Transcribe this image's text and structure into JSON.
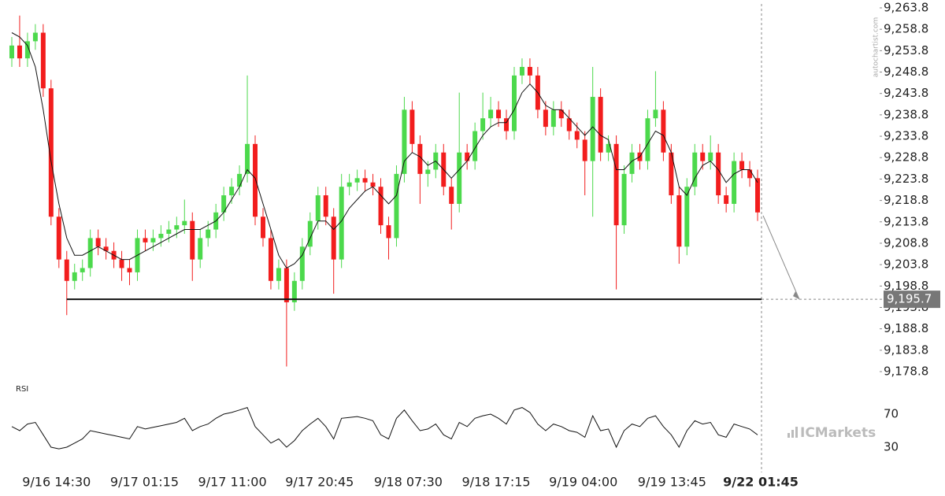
{
  "chart_data": {
    "type": "candlestick",
    "indicator_label": "RSI",
    "watermark": "autochartist.com",
    "brand": "ICMarkets",
    "up_color": "#4cd94c",
    "down_color": "#f21d1d",
    "ma_color": "#111111",
    "open": [
      9252,
      9255,
      9252,
      9256,
      9258,
      9245,
      9215,
      9205,
      9200,
      9202,
      9203,
      9210,
      9208,
      9207,
      9205,
      9203,
      9202,
      9210,
      9209,
      9210,
      9211,
      9212,
      9213,
      9214,
      9205,
      9210,
      9212,
      9216,
      9220,
      9222,
      9225,
      9232,
      9215,
      9210,
      9200,
      9203,
      9195,
      9200,
      9208,
      9214,
      9220,
      9215,
      9205,
      9222,
      9223,
      9224,
      9223,
      9222,
      9213,
      9210,
      9225,
      9240,
      9232,
      9225,
      9226,
      9230,
      9222,
      9218,
      9230,
      9228,
      9235,
      9238,
      9240,
      9238,
      9235,
      9248,
      9250,
      9248,
      9240,
      9236,
      9240,
      9238,
      9235,
      9233,
      9228,
      9243,
      9230,
      9232,
      9213,
      9225,
      9230,
      9228,
      9238,
      9240,
      9230,
      9220,
      9208,
      9222,
      9230,
      9228,
      9230,
      9220,
      9218,
      9228,
      9226,
      9224
    ],
    "high": [
      9257,
      9262,
      9258,
      9260,
      9260,
      9247,
      9217,
      9207,
      9204,
      9205,
      9212,
      9212,
      9210,
      9209,
      9207,
      9205,
      9212,
      9212,
      9212,
      9213,
      9214,
      9215,
      9219,
      9216,
      9212,
      9214,
      9218,
      9222,
      9224,
      9227,
      9248,
      9234,
      9217,
      9212,
      9205,
      9205,
      9202,
      9210,
      9216,
      9222,
      9222,
      9217,
      9225,
      9225,
      9226,
      9226,
      9225,
      9224,
      9215,
      9227,
      9243,
      9242,
      9234,
      9228,
      9232,
      9232,
      9224,
      9244,
      9232,
      9237,
      9244,
      9243,
      9242,
      9240,
      9250,
      9252,
      9252,
      9250,
      9242,
      9242,
      9242,
      9240,
      9237,
      9235,
      9250,
      9245,
      9234,
      9234,
      9227,
      9232,
      9232,
      9240,
      9249,
      9242,
      9232,
      9222,
      9224,
      9232,
      9232,
      9234,
      9232,
      9222,
      9230,
      9230,
      9228,
      9226
    ],
    "low": [
      9250,
      9250,
      9250,
      9254,
      9243,
      9213,
      9203,
      9192,
      9198,
      9200,
      9201,
      9206,
      9205,
      9203,
      9200,
      9199,
      9200,
      9207,
      9207,
      9208,
      9209,
      9210,
      9211,
      9200,
      9203,
      9208,
      9210,
      9214,
      9218,
      9220,
      9223,
      9213,
      9208,
      9198,
      9198,
      9180,
      9193,
      9198,
      9206,
      9212,
      9213,
      9197,
      9203,
      9220,
      9221,
      9221,
      9220,
      9211,
      9205,
      9208,
      9223,
      9230,
      9218,
      9222,
      9224,
      9220,
      9212,
      9216,
      9226,
      9226,
      9233,
      9236,
      9236,
      9233,
      9233,
      9246,
      9246,
      9238,
      9234,
      9234,
      9236,
      9233,
      9231,
      9220,
      9215,
      9228,
      9228,
      9198,
      9211,
      9223,
      9226,
      9226,
      9236,
      9228,
      9218,
      9204,
      9206,
      9220,
      9226,
      9226,
      9218,
      9216,
      9216,
      9224,
      9222,
      9214
    ],
    "close": [
      9255,
      9252,
      9256,
      9258,
      9245,
      9215,
      9205,
      9200,
      9202,
      9203,
      9210,
      9208,
      9207,
      9205,
      9203,
      9202,
      9210,
      9209,
      9210,
      9211,
      9212,
      9213,
      9214,
      9205,
      9210,
      9212,
      9216,
      9220,
      9222,
      9225,
      9232,
      9215,
      9210,
      9200,
      9203,
      9195,
      9200,
      9208,
      9214,
      9220,
      9215,
      9205,
      9222,
      9223,
      9224,
      9223,
      9222,
      9213,
      9210,
      9225,
      9240,
      9232,
      9225,
      9226,
      9230,
      9222,
      9218,
      9230,
      9228,
      9235,
      9238,
      9240,
      9238,
      9235,
      9248,
      9250,
      9248,
      9240,
      9236,
      9240,
      9238,
      9235,
      9233,
      9228,
      9243,
      9230,
      9232,
      9213,
      9225,
      9230,
      9228,
      9238,
      9240,
      9230,
      9220,
      9208,
      9222,
      9230,
      9228,
      9230,
      9220,
      9218,
      9228,
      9226,
      9224,
      9216
    ],
    "ma": [
      9258,
      9257,
      9255,
      9250,
      9240,
      9228,
      9218,
      9210,
      9206,
      9206,
      9207,
      9208,
      9207,
      9206,
      9205,
      9205,
      9206,
      9207,
      9208,
      9209,
      9210,
      9211,
      9212,
      9212,
      9212,
      9213,
      9214,
      9216,
      9219,
      9222,
      9226,
      9224,
      9218,
      9212,
      9206,
      9203,
      9204,
      9206,
      9210,
      9214,
      9214,
      9212,
      9214,
      9217,
      9219,
      9221,
      9222,
      9220,
      9218,
      9220,
      9228,
      9230,
      9229,
      9227,
      9228,
      9226,
      9224,
      9226,
      9228,
      9231,
      9234,
      9236,
      9237,
      9237,
      9240,
      9244,
      9246,
      9244,
      9241,
      9240,
      9240,
      9238,
      9236,
      9234,
      9236,
      9234,
      9233,
      9226,
      9226,
      9228,
      9229,
      9232,
      9235,
      9234,
      9230,
      9222,
      9220,
      9224,
      9227,
      9228,
      9226,
      9223,
      9225,
      9226,
      9226,
      9223
    ],
    "rsi": [
      55,
      50,
      58,
      60,
      45,
      30,
      28,
      30,
      35,
      40,
      50,
      48,
      46,
      44,
      42,
      40,
      55,
      52,
      54,
      56,
      58,
      60,
      65,
      50,
      55,
      58,
      65,
      70,
      72,
      75,
      78,
      55,
      45,
      35,
      40,
      30,
      38,
      50,
      58,
      65,
      55,
      40,
      65,
      66,
      67,
      65,
      62,
      45,
      40,
      65,
      75,
      62,
      50,
      52,
      58,
      45,
      40,
      60,
      55,
      65,
      68,
      70,
      65,
      58,
      75,
      78,
      72,
      58,
      50,
      58,
      55,
      50,
      48,
      42,
      68,
      50,
      52,
      30,
      50,
      58,
      55,
      65,
      68,
      55,
      45,
      30,
      50,
      62,
      58,
      60,
      45,
      42,
      58,
      55,
      52,
      45
    ],
    "level": {
      "value": 9195.7,
      "label": "9,195.7"
    },
    "ylim": [
      9178.8,
      9263.8
    ],
    "yticks": [
      {
        "value": 9178.8,
        "label": "9,178.8"
      },
      {
        "value": 9183.8,
        "label": "9,183.8"
      },
      {
        "value": 9188.8,
        "label": "9,188.8"
      },
      {
        "value": 9193.8,
        "label": "9,193.8"
      },
      {
        "value": 9198.8,
        "label": "9,198.8"
      },
      {
        "value": 9203.8,
        "label": "9,203.8"
      },
      {
        "value": 9208.8,
        "label": "9,208.8"
      },
      {
        "value": 9213.8,
        "label": "9,213.8"
      },
      {
        "value": 9218.8,
        "label": "9,218.8"
      },
      {
        "value": 9223.8,
        "label": "9,223.8"
      },
      {
        "value": 9228.8,
        "label": "9,228.8"
      },
      {
        "value": 9233.8,
        "label": "9,233.8"
      },
      {
        "value": 9238.8,
        "label": "9,238.8"
      },
      {
        "value": 9243.8,
        "label": "9,243.8"
      },
      {
        "value": 9248.8,
        "label": "9,248.8"
      },
      {
        "value": 9253.8,
        "label": "9,253.8"
      },
      {
        "value": 9258.8,
        "label": "9,258.8"
      },
      {
        "value": 9263.8,
        "label": "9,263.8"
      }
    ],
    "rsi_ylim": [
      30,
      70
    ],
    "rsi_ticks": [
      70,
      30
    ],
    "xticks": [
      {
        "value": 5.7,
        "label": "9/16 14:30"
      },
      {
        "value": 16.9,
        "label": "9/17 01:15"
      },
      {
        "value": 28.1,
        "label": "9/17 11:00"
      },
      {
        "value": 39.2,
        "label": "9/17 20:45"
      },
      {
        "value": 50.5,
        "label": "9/18 07:30"
      },
      {
        "value": 61.7,
        "label": "9/18 17:15"
      },
      {
        "value": 72.8,
        "label": "9/19 04:00"
      },
      {
        "value": 84.1,
        "label": "9/19 13:45"
      },
      {
        "value": 95.4,
        "label": "9/22 01:45"
      }
    ]
  }
}
